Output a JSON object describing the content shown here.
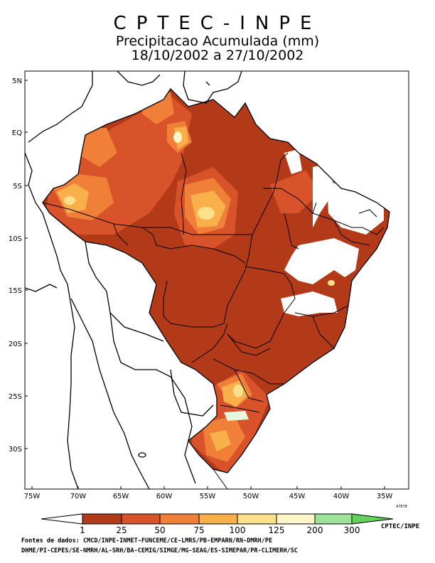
{
  "header": {
    "org": "CPTEC-INPE",
    "title": "Precipitacao Acumulada (mm)",
    "period": "18/10/2002 a 27/10/2002"
  },
  "map": {
    "lon_ticks": [
      "75W",
      "70W",
      "65W",
      "60W",
      "55W",
      "50W",
      "45W",
      "40W",
      "35W"
    ],
    "lat_ticks": [
      "5N",
      "EQ",
      "5S",
      "10S",
      "15S",
      "20S",
      "25S",
      "30S"
    ],
    "lon_range": [
      -76,
      -33
    ],
    "lat_range": [
      -34.5,
      5.5
    ],
    "code": "47878"
  },
  "legend": {
    "ticks": [
      "1",
      "25",
      "50",
      "75",
      "100",
      "125",
      "200",
      "300"
    ],
    "colors": [
      "#b33a18",
      "#d9532a",
      "#f07f38",
      "#f9b04a",
      "#fde08a",
      "#fff6c8",
      "#e6f7e0",
      "#9ee39a",
      "#5fd35a"
    ]
  },
  "credits": {
    "line1": "Fontes de dados: CMCD/INPE-INMET-FUNCEME/CE-LMRS/PB-EMPARN/RN-DMRH/PE",
    "line2": "DHME/PI-CEPES/SE-NMRH/AL-SRH/BA-CEMIG/SIMGE/MG-SEAG/ES-SIMEPAR/PR-CLIMERH/SC",
    "cptec": "CPTEC/INPE"
  }
}
